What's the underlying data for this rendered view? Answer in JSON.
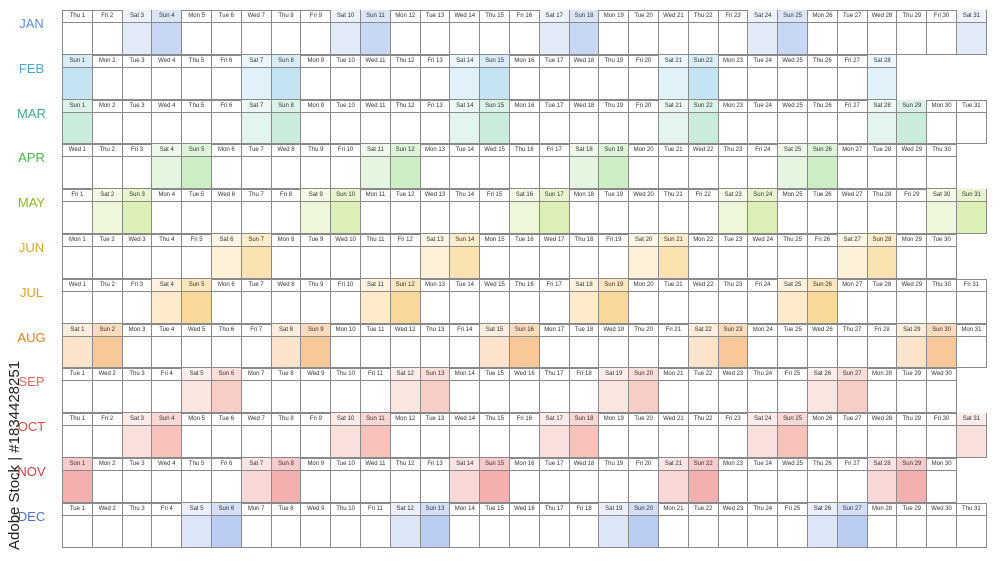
{
  "months": [
    {
      "label": "JAN",
      "color": "#5b8fe0",
      "fill": "#c8d8f4",
      "fill_alt": "#e3ebf9",
      "start_weekday": 4,
      "days": 31
    },
    {
      "label": "FEB",
      "color": "#49a6d8",
      "fill": "#c4e3f3",
      "fill_alt": "#e1f1f9",
      "start_weekday": 0,
      "days": 28
    },
    {
      "label": "MAR",
      "color": "#3fae86",
      "fill": "#c9ecdd",
      "fill_alt": "#e4f5ee",
      "start_weekday": 0,
      "days": 31
    },
    {
      "label": "APR",
      "color": "#49b84a",
      "fill": "#cdeec4",
      "fill_alt": "#e5f6e0",
      "start_weekday": 3,
      "days": 30
    },
    {
      "label": "MAY",
      "color": "#8fba1f",
      "fill": "#dcefb4",
      "fill_alt": "#eef7d9",
      "start_weekday": 5,
      "days": 31
    },
    {
      "label": "JUN",
      "color": "#e0a825",
      "fill": "#fae3b0",
      "fill_alt": "#fdf1d7",
      "start_weekday": 1,
      "days": 30
    },
    {
      "label": "JUL",
      "color": "#e3a21a",
      "fill": "#fbd99b",
      "fill_alt": "#fdebcc",
      "start_weekday": 3,
      "days": 31
    },
    {
      "label": "AUG",
      "color": "#e3801f",
      "fill": "#f9c89a",
      "fill_alt": "#fce3cb",
      "start_weekday": 6,
      "days": 31
    },
    {
      "label": "SEP",
      "color": "#e36a58",
      "fill": "#f8cdc6",
      "fill_alt": "#fbe5e1",
      "start_weekday": 2,
      "days": 30
    },
    {
      "label": "OCT",
      "color": "#dd4a3a",
      "fill": "#f6c2ba",
      "fill_alt": "#fae0dc",
      "start_weekday": 4,
      "days": 31
    },
    {
      "label": "NOV",
      "color": "#d33b3b",
      "fill": "#f3b0ae",
      "fill_alt": "#f9d7d6",
      "start_weekday": 0,
      "days": 30
    },
    {
      "label": "DEC",
      "color": "#4a72d6",
      "fill": "#bccdf3",
      "fill_alt": "#dde6f9",
      "start_weekday": 2,
      "days": 31
    }
  ],
  "weekday_abbr": [
    "Sun",
    "Mon",
    "Tue",
    "Wed",
    "Thu",
    "Fri",
    "Sat"
  ],
  "watermark": "Adobe Stock | #1834428251"
}
